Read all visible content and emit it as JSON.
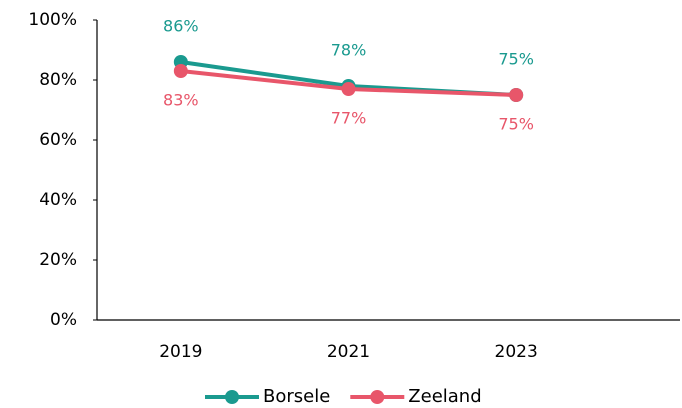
{
  "chart_data": {
    "type": "line",
    "categories": [
      "2019",
      "2021",
      "2023"
    ],
    "series": [
      {
        "name": "Borsele",
        "color": "#1a9a8f",
        "values": [
          86,
          78,
          75
        ],
        "value_labels": [
          "86%",
          "78%",
          "75%"
        ],
        "label_position": "above"
      },
      {
        "name": "Zeeland",
        "color": "#e8566a",
        "values": [
          83,
          77,
          75
        ],
        "value_labels": [
          "83%",
          "77%",
          "75%"
        ],
        "label_position": "below"
      }
    ],
    "ylim": [
      0,
      100
    ],
    "yticks": [
      {
        "value": 0,
        "label": "0%"
      },
      {
        "value": 20,
        "label": "20%"
      },
      {
        "value": 40,
        "label": "40%"
      },
      {
        "value": 60,
        "label": "60%"
      },
      {
        "value": 80,
        "label": "80%"
      },
      {
        "value": 100,
        "label": "100%"
      }
    ],
    "grid": false,
    "legend": "bottom"
  }
}
